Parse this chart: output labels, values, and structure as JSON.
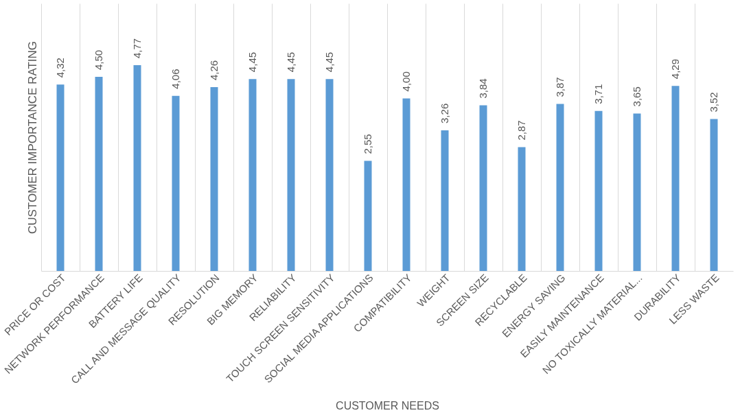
{
  "chart_data": {
    "type": "bar",
    "xlabel": "CUSTOMER NEEDS",
    "ylabel": "CUSTOMER IMPORTANCE RATING",
    "categories": [
      "PRICE OR COST",
      "NETWORK PERFORMANCE",
      "BATTERY LIFE",
      "CALL AND MESSAGE QUALITY",
      "RESOLUTION",
      "BIG MEMORY",
      "RELIABILITY",
      "TOUCH SCREEN SENSITIVITY",
      "SOCIAL MEDIA APPLICATIONS",
      "COMPATIBILITY",
      "WEIGHT",
      "SCREEN SIZE",
      "RECYCLABLE",
      "ENERGY SAVING",
      "EASILY MAINTENANCE",
      "NO TOXICALLY MATERIAL...",
      "DURABILITY",
      "LESS WASTE"
    ],
    "values": [
      4.32,
      4.5,
      4.77,
      4.06,
      4.26,
      4.45,
      4.45,
      4.45,
      2.55,
      4.0,
      3.26,
      3.84,
      2.87,
      3.87,
      3.71,
      3.65,
      4.29,
      3.52
    ],
    "value_labels": [
      "4,32",
      "4,50",
      "4,77",
      "4,06",
      "4,26",
      "4,45",
      "4,45",
      "4,45",
      "2,55",
      "4,00",
      "3,26",
      "3,84",
      "2,87",
      "3,87",
      "3,71",
      "3,65",
      "4,29",
      "3,52"
    ],
    "color": "#5b9bd5",
    "grid": "x",
    "tick_labels": "x"
  }
}
